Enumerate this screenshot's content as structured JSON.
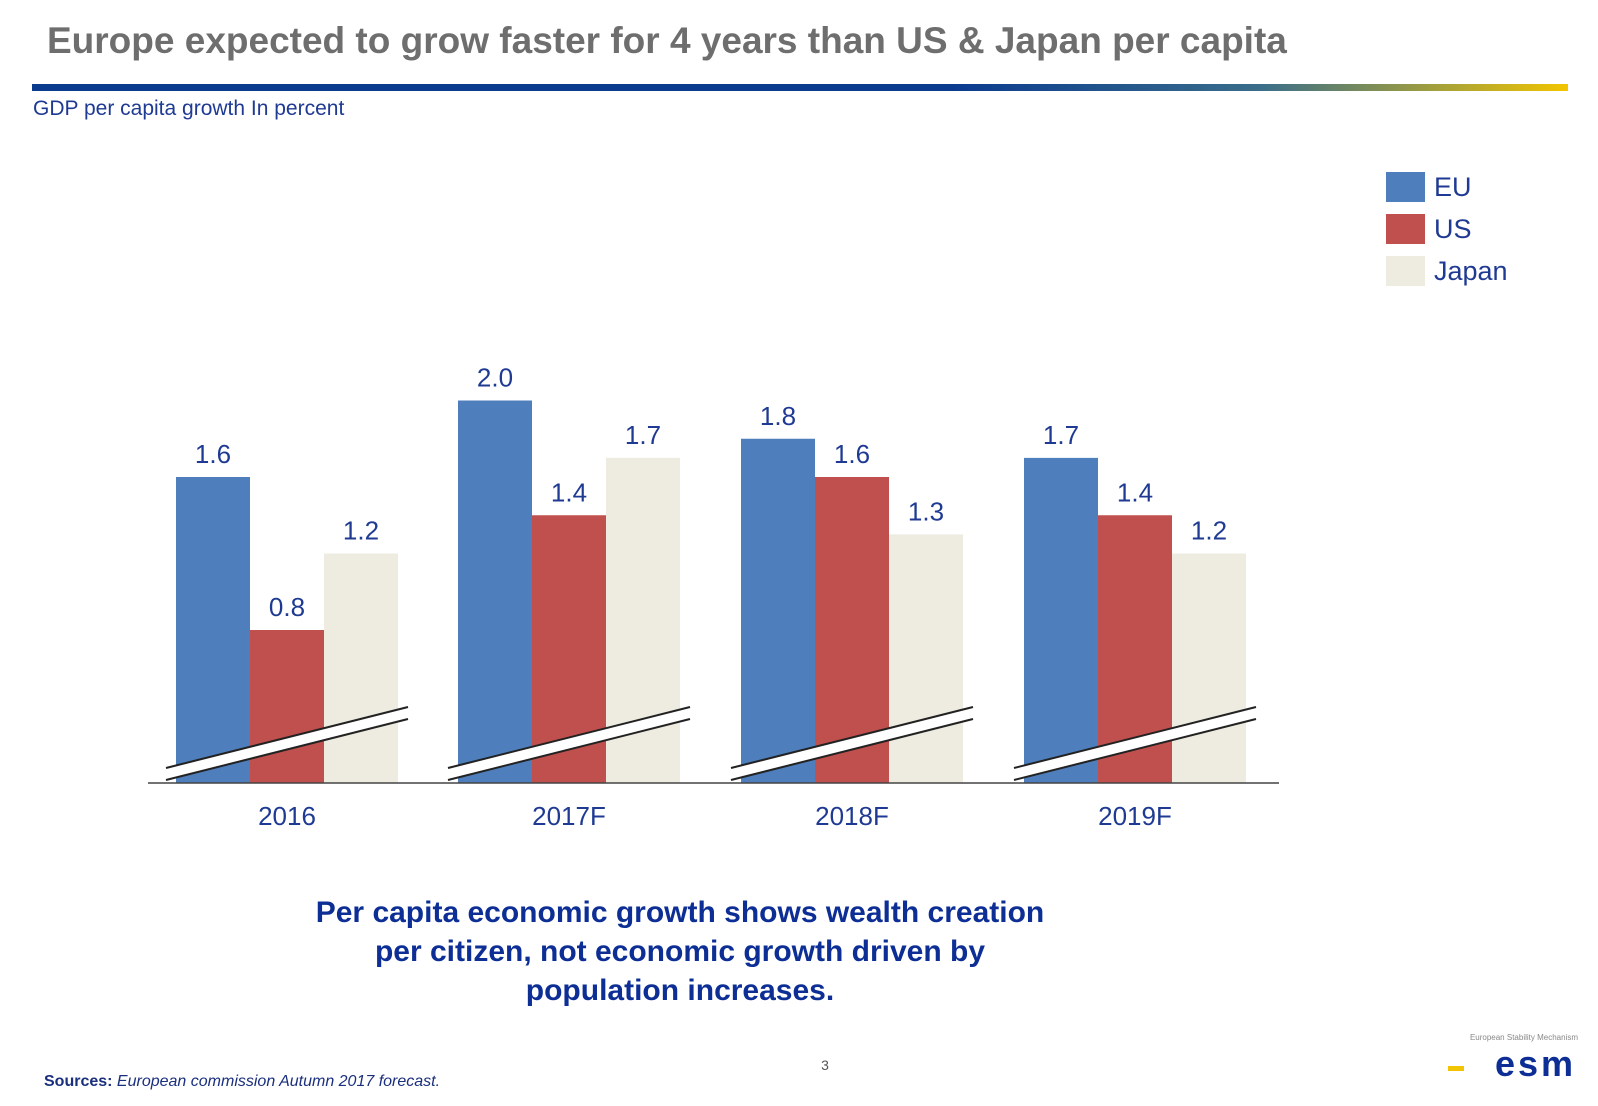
{
  "slide": {
    "title": "Europe expected to grow faster for 4 years than US & Japan per capita",
    "subtitle": "GDP per capita growth In percent",
    "takeaway_lines": [
      "Per capita economic growth shows wealth creation",
      "per citizen, not economic growth driven by",
      "population increases."
    ],
    "sources_label": "Sources:",
    "sources_text": "European commission Autumn 2017 forecast.",
    "page_number": "3",
    "logo_caption": "European Stability Mechanism",
    "logo_text": "esm",
    "accent_colors": {
      "title_gray": "#6e6e6e",
      "text_blue": "#1f3a93",
      "rule_blue": "#0b3b8f",
      "rule_gold": "#f2c500"
    }
  },
  "chart_data": {
    "type": "bar",
    "categories": [
      "2016",
      "2017F",
      "2018F",
      "2019F"
    ],
    "series": [
      {
        "name": "EU",
        "color": "#4e7fbc",
        "values": [
          1.6,
          2.0,
          1.8,
          1.7
        ]
      },
      {
        "name": "US",
        "color": "#c0504d",
        "values": [
          0.8,
          1.4,
          1.6,
          1.4
        ]
      },
      {
        "name": "Japan",
        "color": "#eeebe0",
        "values": [
          1.2,
          1.7,
          1.3,
          1.2
        ]
      }
    ],
    "value_labels": [
      "1.6",
      "0.8",
      "1.2",
      "2.0",
      "1.4",
      "1.7",
      "1.8",
      "1.6",
      "1.3",
      "1.7",
      "1.4",
      "1.2"
    ],
    "axis_break": true,
    "legend_position": "top-right",
    "grid": false,
    "xlabel": "",
    "ylabel": ""
  }
}
